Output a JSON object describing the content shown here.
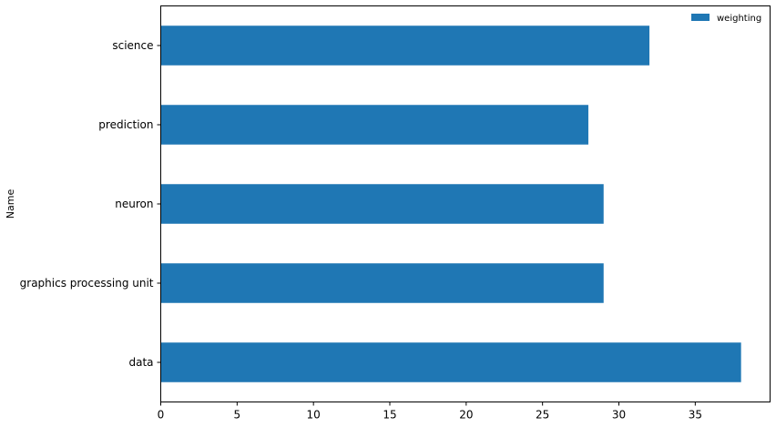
{
  "chart_data": {
    "type": "bar",
    "orientation": "horizontal",
    "categories": [
      "data",
      "graphics processing unit",
      "neuron",
      "prediction",
      "science"
    ],
    "series": [
      {
        "name": "weighting",
        "values": [
          38,
          29,
          29,
          28,
          32
        ],
        "color": "#1f77b4"
      }
    ],
    "ylabel": "Name",
    "xlabel": "",
    "xlim": [
      0,
      39.9
    ],
    "xticks": [
      0,
      5,
      10,
      15,
      20,
      25,
      30,
      35
    ],
    "grid": false,
    "legend_position": "top-right"
  }
}
